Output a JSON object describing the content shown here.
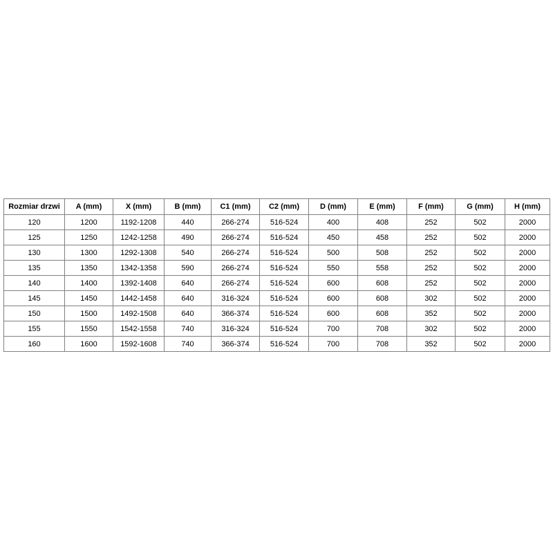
{
  "page": {
    "background_color": "#ffffff",
    "table_border_color": "#808080",
    "table_text_color": "#000000"
  },
  "chart_data": {
    "type": "table",
    "title": "",
    "columns": [
      "Rozmiar drzwi",
      "A (mm)",
      "X (mm)",
      "B (mm)",
      "C1 (mm)",
      "C2 (mm)",
      "D (mm)",
      "E (mm)",
      "F (mm)",
      "G (mm)",
      "H (mm)"
    ],
    "rows": [
      [
        "120",
        "1200",
        "1192-1208",
        "440",
        "266-274",
        "516-524",
        "400",
        "408",
        "252",
        "502",
        "2000"
      ],
      [
        "125",
        "1250",
        "1242-1258",
        "490",
        "266-274",
        "516-524",
        "450",
        "458",
        "252",
        "502",
        "2000"
      ],
      [
        "130",
        "1300",
        "1292-1308",
        "540",
        "266-274",
        "516-524",
        "500",
        "508",
        "252",
        "502",
        "2000"
      ],
      [
        "135",
        "1350",
        "1342-1358",
        "590",
        "266-274",
        "516-524",
        "550",
        "558",
        "252",
        "502",
        "2000"
      ],
      [
        "140",
        "1400",
        "1392-1408",
        "640",
        "266-274",
        "516-524",
        "600",
        "608",
        "252",
        "502",
        "2000"
      ],
      [
        "145",
        "1450",
        "1442-1458",
        "640",
        "316-324",
        "516-524",
        "600",
        "608",
        "302",
        "502",
        "2000"
      ],
      [
        "150",
        "1500",
        "1492-1508",
        "640",
        "366-374",
        "516-524",
        "600",
        "608",
        "352",
        "502",
        "2000"
      ],
      [
        "155",
        "1550",
        "1542-1558",
        "740",
        "316-324",
        "516-524",
        "700",
        "708",
        "302",
        "502",
        "2000"
      ],
      [
        "160",
        "1600",
        "1592-1608",
        "740",
        "366-374",
        "516-524",
        "700",
        "708",
        "352",
        "502",
        "2000"
      ]
    ]
  }
}
